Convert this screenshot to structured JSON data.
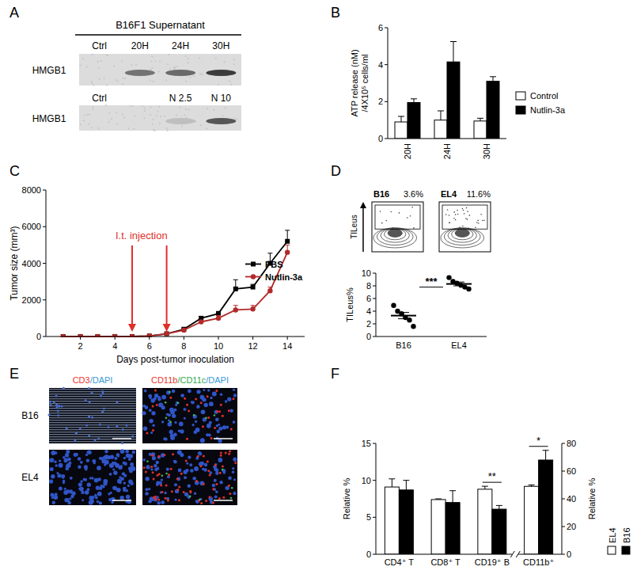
{
  "panel_labels": [
    "A",
    "B",
    "C",
    "D",
    "E",
    "F"
  ],
  "blot": {
    "header": "B16F1 Supernatant",
    "rows": [
      {
        "label": "HMGB1",
        "lanes": [
          "Ctrl",
          "20H",
          "24H",
          "30H"
        ]
      },
      {
        "label": "HMGB1",
        "lanes": [
          "Ctrl",
          null,
          "N 2.5",
          "N 10"
        ]
      }
    ]
  },
  "flow_plots": {
    "ylabel": "TILeus",
    "plots": [
      {
        "title": "B16",
        "gate": "3.6%"
      },
      {
        "title": "EL4",
        "gate": "11.6%"
      }
    ]
  },
  "images": {
    "columns": [
      [
        {
          "text": "CD3",
          "color": "#e8362d"
        },
        {
          "text": "/DAPI",
          "color": "#3c9bd6"
        }
      ],
      [
        {
          "text": "CD11b",
          "color": "#e8362d"
        },
        {
          "text": "/CD11c",
          "color": "#2fa84a"
        },
        {
          "text": "/DAPI",
          "color": "#3c9bd6"
        }
      ]
    ],
    "rows": [
      "B16",
      "EL4"
    ]
  },
  "chart_data": [
    {
      "type": "bar",
      "categories": [
        "20H",
        "24H",
        "30H"
      ],
      "ylabel": [
        "ATP release (nM)",
        "/4X10⁵ cells/ml"
      ],
      "ylim": [
        0,
        6
      ],
      "yticks": [
        0,
        2,
        4,
        6
      ],
      "legend": "right",
      "series": [
        {
          "name": "Control",
          "color": "#ffffff",
          "values": [
            0.9,
            1.0,
            0.95
          ],
          "errors": [
            0.3,
            0.5,
            0.15
          ]
        },
        {
          "name": "Nutlin-3a",
          "color": "#000000",
          "values": [
            1.95,
            4.15,
            3.1
          ],
          "errors": [
            0.2,
            1.1,
            0.25
          ]
        }
      ]
    },
    {
      "type": "line",
      "xlabel": "Days post-tumor inoculation",
      "ylabel": "Tumor size (mm³)",
      "x": [
        1,
        2,
        3,
        4,
        5,
        6,
        7,
        8,
        9,
        10,
        11,
        12,
        13,
        14
      ],
      "xlim": [
        0,
        15
      ],
      "xticks": [
        2,
        4,
        6,
        8,
        10,
        12,
        14
      ],
      "ylim": [
        0,
        8000
      ],
      "yticks": [
        0,
        2000,
        4000,
        6000,
        8000
      ],
      "legend": "right",
      "series": [
        {
          "name": "PBS",
          "color": "#000000",
          "marker": "square",
          "values": [
            0,
            0,
            0,
            0,
            0,
            30,
            150,
            400,
            1000,
            1250,
            2600,
            2700,
            4000,
            5200
          ],
          "errors": [
            0,
            0,
            0,
            0,
            0,
            20,
            40,
            60,
            100,
            120,
            500,
            150,
            550,
            600
          ]
        },
        {
          "name": "Nutlin-3a",
          "color": "#b22a2a",
          "marker": "circle",
          "values": [
            0,
            0,
            0,
            0,
            0,
            30,
            150,
            350,
            800,
            1000,
            1450,
            1500,
            2500,
            4600
          ],
          "errors": [
            0,
            0,
            0,
            0,
            0,
            20,
            40,
            60,
            80,
            150,
            250,
            200,
            200,
            400
          ]
        }
      ],
      "annotations": [
        {
          "text": "I.t. injection",
          "x": [
            5,
            7
          ],
          "color": "#e0302a"
        }
      ]
    },
    {
      "type": "scatter",
      "categories": [
        "B16",
        "EL4"
      ],
      "ylabel": "TILeus%",
      "ylim": [
        0,
        10
      ],
      "yticks": [
        0,
        2,
        4,
        6,
        8,
        10
      ],
      "values": [
        [
          4.9,
          4.0,
          3.6,
          3.0,
          2.6,
          1.6
        ],
        [
          9.3,
          8.7,
          8.4,
          8.1,
          7.8,
          7.5
        ]
      ],
      "mean": [
        3.3,
        8.3
      ],
      "error": [
        0.5,
        0.3
      ],
      "annotations": [
        {
          "text": "***"
        }
      ]
    },
    {
      "type": "bar",
      "categories": [
        "CD4⁺ T",
        "CD8⁺ T",
        "CD19⁺ B",
        "CD11b⁺"
      ],
      "ylabel": "Relative %",
      "y2label": "Relative %",
      "ylim": [
        0,
        15
      ],
      "yticks": [
        0,
        5,
        10,
        15
      ],
      "y2lim": [
        0,
        80
      ],
      "y2ticks": [
        0,
        20,
        40,
        60,
        80
      ],
      "legend": "right",
      "series": [
        {
          "name": "EL4",
          "color": "#ffffff",
          "values": [
            9.1,
            7.4,
            8.8,
            null
          ],
          "errors": [
            1.1,
            0.1,
            0.4,
            null
          ]
        },
        {
          "name": "B16",
          "color": "#000000",
          "values": [
            8.7,
            7.0,
            6.1,
            null
          ],
          "errors": [
            1.3,
            1.6,
            0.5,
            null
          ]
        },
        {
          "name": "EL4",
          "color": "#ffffff",
          "axis": "y2",
          "values": [
            null,
            null,
            null,
            49
          ],
          "errors": [
            null,
            null,
            null,
            1
          ]
        },
        {
          "name": "B16",
          "color": "#000000",
          "axis": "y2",
          "values": [
            null,
            null,
            null,
            68
          ],
          "errors": [
            null,
            null,
            null,
            7
          ]
        }
      ],
      "annotations": [
        {
          "text": "**",
          "category": 2
        },
        {
          "text": "*",
          "category": 3
        }
      ]
    }
  ]
}
